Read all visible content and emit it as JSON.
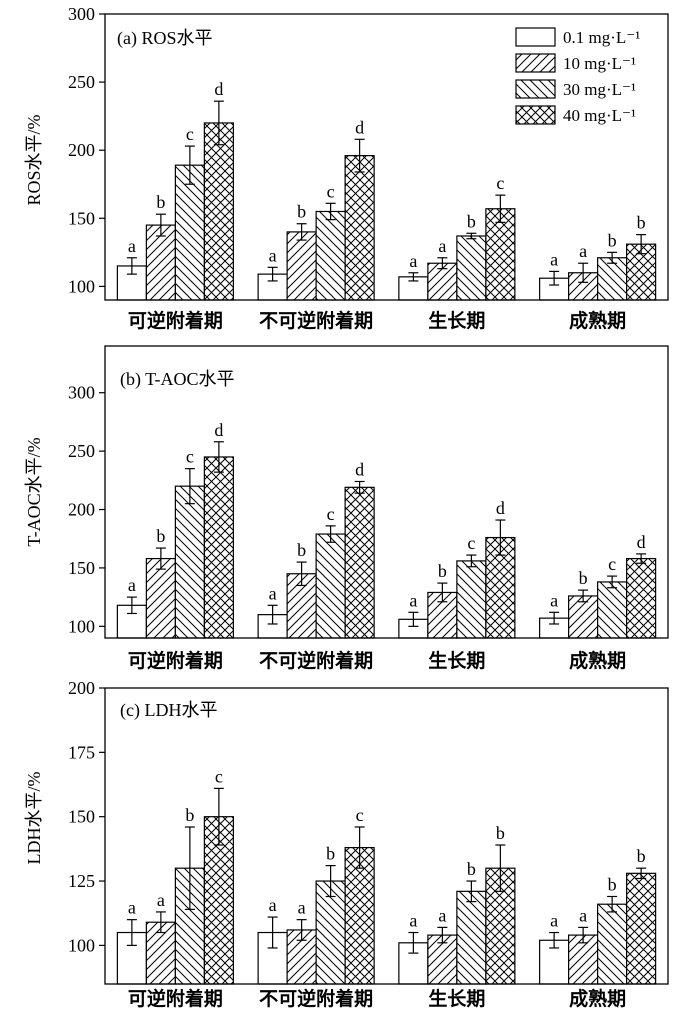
{
  "styles": {
    "background": "#ffffff",
    "ink": "#000000",
    "series_patterns": [
      "none",
      "forward-diagonal",
      "back-diagonal",
      "crosshatch"
    ]
  },
  "chart_data": [
    {
      "type": "bar",
      "title": "(a) ROS水平",
      "ylabel": "ROS水平/%",
      "ylim": [
        90,
        300
      ],
      "yticks": [
        100,
        150,
        200,
        250,
        300
      ],
      "grid": false,
      "legend": "top-right",
      "error_bars": true,
      "categories": [
        "可逆附着期",
        "不可逆附着期",
        "生长期",
        "成熟期"
      ],
      "series": [
        {
          "name": "0.1 mg·L⁻¹",
          "values": [
            115,
            109,
            107,
            106
          ],
          "errors": [
            6,
            5,
            3,
            5
          ],
          "letters": [
            "a",
            "a",
            "a",
            "a"
          ]
        },
        {
          "name": "10 mg·L⁻¹",
          "values": [
            145,
            140,
            117,
            110
          ],
          "errors": [
            8,
            6,
            4,
            7
          ],
          "letters": [
            "b",
            "b",
            "a",
            "a"
          ]
        },
        {
          "name": "30 mg·L⁻¹",
          "values": [
            189,
            155,
            137,
            121
          ],
          "errors": [
            14,
            6,
            2,
            4
          ],
          "letters": [
            "c",
            "c",
            "b",
            "b"
          ]
        },
        {
          "name": "40 mg·L⁻¹",
          "values": [
            220,
            196,
            157,
            131
          ],
          "errors": [
            16,
            12,
            10,
            7
          ],
          "letters": [
            "d",
            "d",
            "c",
            "b"
          ]
        }
      ]
    },
    {
      "type": "bar",
      "title": "(b) T-AOC水平",
      "ylabel": "T-AOC水平/%",
      "ylim": [
        90,
        340
      ],
      "yticks": [
        100,
        150,
        200,
        250,
        300
      ],
      "grid": false,
      "error_bars": true,
      "categories": [
        "可逆附着期",
        "不可逆附着期",
        "生长期",
        "成熟期"
      ],
      "series": [
        {
          "values": [
            118,
            110,
            106,
            107
          ],
          "errors": [
            7,
            8,
            6,
            5
          ],
          "letters": [
            "a",
            "a",
            "a",
            "a"
          ]
        },
        {
          "values": [
            158,
            145,
            129,
            126
          ],
          "errors": [
            9,
            10,
            8,
            5
          ],
          "letters": [
            "b",
            "b",
            "b",
            "b"
          ]
        },
        {
          "values": [
            220,
            179,
            156,
            138
          ],
          "errors": [
            15,
            7,
            5,
            5
          ],
          "letters": [
            "c",
            "c",
            "c",
            "c"
          ]
        },
        {
          "values": [
            245,
            219,
            176,
            158
          ],
          "errors": [
            13,
            5,
            15,
            4
          ],
          "letters": [
            "d",
            "d",
            "d",
            "d"
          ]
        }
      ]
    },
    {
      "type": "bar",
      "title": "(c) LDH水平",
      "ylabel": "LDH水平/%",
      "ylim": [
        85,
        200
      ],
      "yticks": [
        100,
        125,
        150,
        175,
        200
      ],
      "grid": false,
      "error_bars": true,
      "categories": [
        "可逆附着期",
        "不可逆附着期",
        "生长期",
        "成熟期"
      ],
      "series": [
        {
          "values": [
            105,
            105,
            101,
            102
          ],
          "errors": [
            5,
            6,
            4,
            3
          ],
          "letters": [
            "a",
            "a",
            "a",
            "a"
          ]
        },
        {
          "values": [
            109,
            106,
            104,
            104
          ],
          "errors": [
            4,
            4,
            3,
            3
          ],
          "letters": [
            "a",
            "a",
            "a",
            "a"
          ]
        },
        {
          "values": [
            130,
            125,
            121,
            116
          ],
          "errors": [
            16,
            6,
            4,
            3
          ],
          "letters": [
            "b",
            "b",
            "b",
            "b"
          ]
        },
        {
          "values": [
            150,
            138,
            130,
            128
          ],
          "errors": [
            11,
            8,
            9,
            2
          ],
          "letters": [
            "c",
            "c",
            "b",
            "b"
          ]
        }
      ]
    }
  ]
}
